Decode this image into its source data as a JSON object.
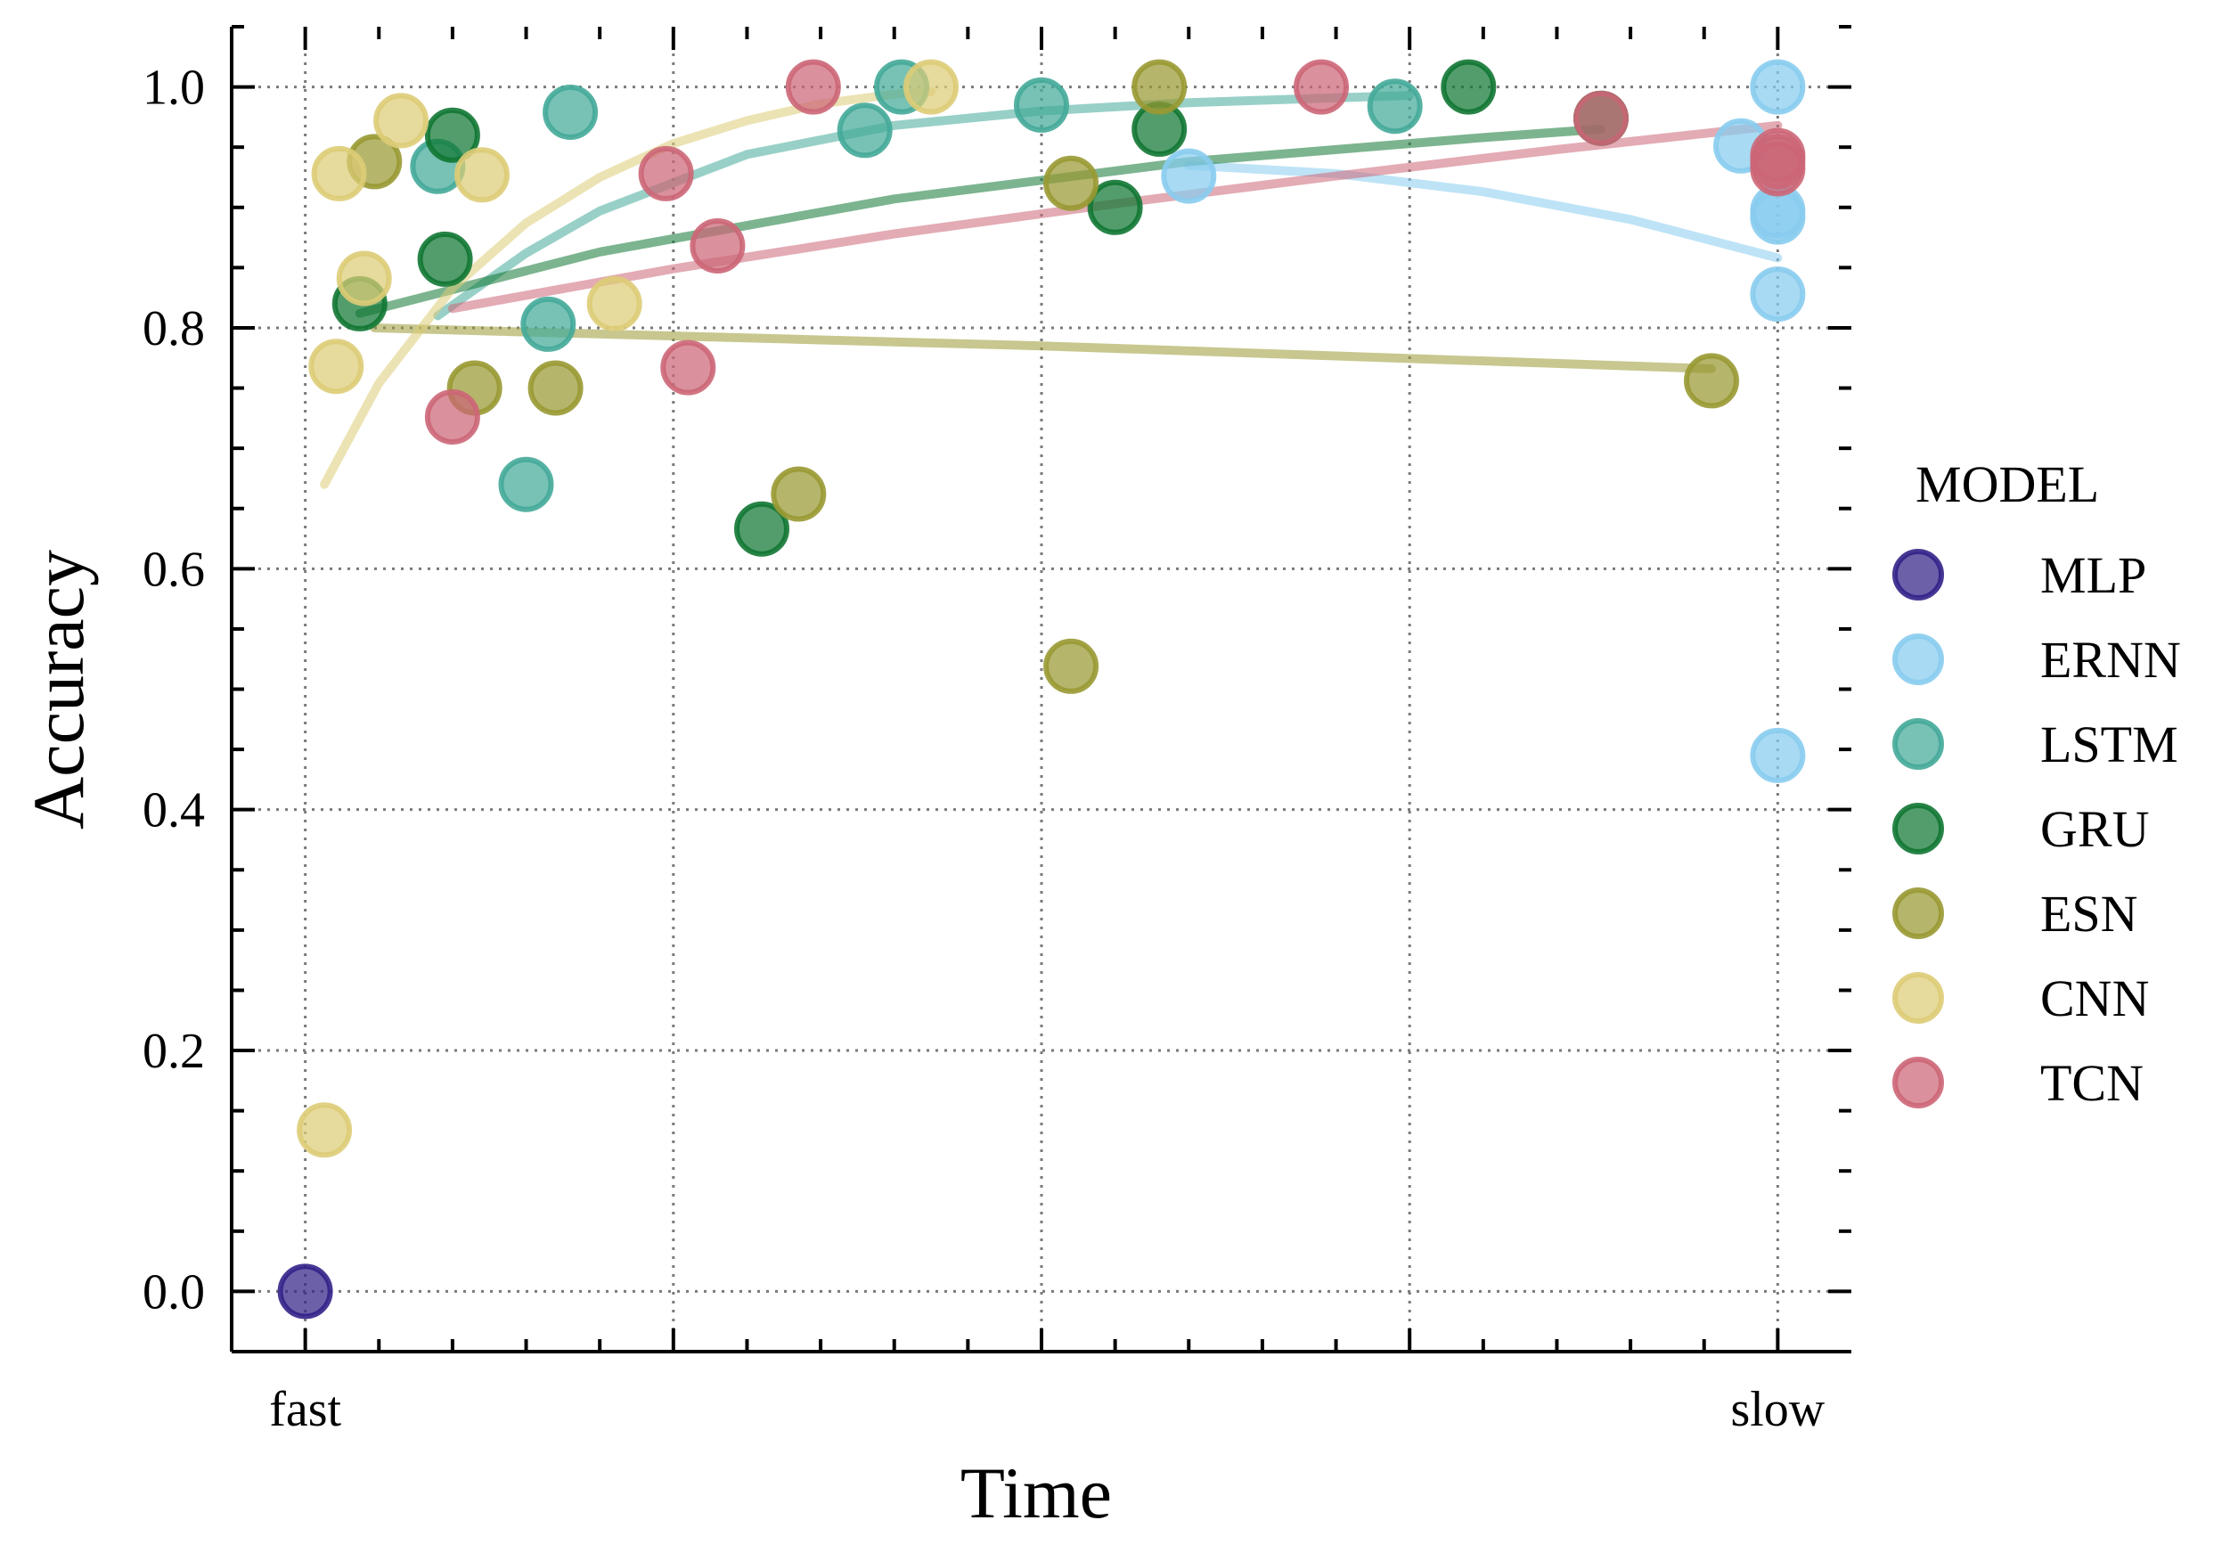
{
  "chart_data": {
    "type": "scatter",
    "title": "",
    "xlabel": "Time",
    "ylabel": "Accuracy",
    "x_tick_labels": [
      "fast",
      "slow"
    ],
    "xlim": [
      -0.05,
      1.05
    ],
    "ylim": [
      -0.05,
      1.05
    ],
    "y_ticks": [
      0.0,
      0.2,
      0.4,
      0.6,
      0.8,
      1.0
    ],
    "y_tick_labels": [
      "0.0",
      "0.2",
      "0.4",
      "0.6",
      "0.8",
      "1.0"
    ],
    "grid": true,
    "legend": {
      "title": "MODEL",
      "placement": "right"
    },
    "series": [
      {
        "name": "MLP",
        "color": "#332288",
        "points": [
          [
            0.0,
            0.0
          ]
        ],
        "trend": null
      },
      {
        "name": "ERNN",
        "color": "#88CCEE",
        "points": [
          [
            0.6,
            0.926
          ],
          [
            0.975,
            0.951
          ],
          [
            1.0,
            1.0
          ],
          [
            1.0,
            0.897
          ],
          [
            1.0,
            0.892
          ],
          [
            1.0,
            0.828
          ],
          [
            1.0,
            0.445
          ]
        ],
        "trend": [
          [
            0.6,
            0.935
          ],
          [
            0.7,
            0.928
          ],
          [
            0.8,
            0.913
          ],
          [
            0.9,
            0.89
          ],
          [
            1.0,
            0.858
          ]
        ]
      },
      {
        "name": "LSTM",
        "color": "#44AA99",
        "points": [
          [
            0.09,
            0.934
          ],
          [
            0.18,
            0.979
          ],
          [
            0.165,
            0.803
          ],
          [
            0.15,
            0.67
          ],
          [
            0.38,
            0.964
          ],
          [
            0.405,
            1.0
          ],
          [
            0.5,
            0.985
          ],
          [
            0.74,
            0.984
          ]
        ],
        "trend": [
          [
            0.09,
            0.81
          ],
          [
            0.15,
            0.862
          ],
          [
            0.2,
            0.897
          ],
          [
            0.3,
            0.944
          ],
          [
            0.4,
            0.968
          ],
          [
            0.5,
            0.98
          ],
          [
            0.6,
            0.987
          ],
          [
            0.7,
            0.991
          ],
          [
            0.75,
            0.993
          ]
        ]
      },
      {
        "name": "GRU",
        "color": "#117733",
        "points": [
          [
            0.037,
            0.82
          ],
          [
            0.095,
            0.857
          ],
          [
            0.1,
            0.96
          ],
          [
            0.31,
            0.633
          ],
          [
            0.55,
            0.9
          ],
          [
            0.58,
            0.965
          ],
          [
            0.79,
            1.0
          ],
          [
            0.88,
            0.974
          ]
        ],
        "trend": [
          [
            0.037,
            0.812
          ],
          [
            0.2,
            0.863
          ],
          [
            0.4,
            0.907
          ],
          [
            0.6,
            0.938
          ],
          [
            0.8,
            0.958
          ],
          [
            0.88,
            0.965
          ]
        ]
      },
      {
        "name": "ESN",
        "color": "#999933",
        "points": [
          [
            0.047,
            0.938
          ],
          [
            0.115,
            0.75
          ],
          [
            0.17,
            0.75
          ],
          [
            0.335,
            0.662
          ],
          [
            0.52,
            0.92
          ],
          [
            0.52,
            0.519
          ],
          [
            0.58,
            1.0
          ],
          [
            0.955,
            0.756
          ]
        ],
        "trend": [
          [
            0.047,
            0.8
          ],
          [
            0.5,
            0.785
          ],
          [
            0.955,
            0.766
          ]
        ]
      },
      {
        "name": "CNN",
        "color": "#DDCC77",
        "points": [
          [
            0.023,
            0.928
          ],
          [
            0.021,
            0.768
          ],
          [
            0.04,
            0.841
          ],
          [
            0.065,
            0.972
          ],
          [
            0.12,
            0.927
          ],
          [
            0.21,
            0.82
          ],
          [
            0.425,
            1.0
          ],
          [
            0.013,
            0.134
          ]
        ],
        "trend": [
          [
            0.013,
            0.67
          ],
          [
            0.05,
            0.754
          ],
          [
            0.1,
            0.833
          ],
          [
            0.15,
            0.887
          ],
          [
            0.2,
            0.925
          ],
          [
            0.25,
            0.953
          ],
          [
            0.3,
            0.972
          ],
          [
            0.35,
            0.986
          ],
          [
            0.4,
            0.994
          ],
          [
            0.425,
            0.996
          ]
        ]
      },
      {
        "name": "TCN",
        "color": "#CC6677",
        "points": [
          [
            0.1,
            0.726
          ],
          [
            0.245,
            0.928
          ],
          [
            0.28,
            0.868
          ],
          [
            0.26,
            0.767
          ],
          [
            0.345,
            1.0
          ],
          [
            0.69,
            1.0
          ],
          [
            0.88,
            0.974
          ],
          [
            1.0,
            0.943
          ],
          [
            1.0,
            0.938
          ],
          [
            1.0,
            0.932
          ]
        ],
        "trend": [
          [
            0.1,
            0.816
          ],
          [
            0.25,
            0.849
          ],
          [
            0.4,
            0.878
          ],
          [
            0.55,
            0.903
          ],
          [
            0.7,
            0.926
          ],
          [
            0.85,
            0.948
          ],
          [
            1.0,
            0.968
          ]
        ]
      }
    ]
  }
}
